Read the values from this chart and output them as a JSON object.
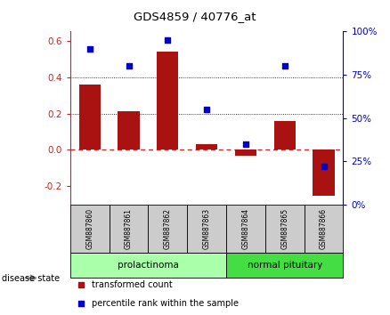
{
  "title": "GDS4859 / 40776_at",
  "samples": [
    "GSM887860",
    "GSM887861",
    "GSM887862",
    "GSM887863",
    "GSM887864",
    "GSM887865",
    "GSM887866"
  ],
  "transformed_count": [
    0.36,
    0.21,
    0.54,
    0.03,
    -0.03,
    0.16,
    -0.25
  ],
  "percentile_rank": [
    90,
    80,
    95,
    55,
    35,
    80,
    22
  ],
  "ylim_left": [
    -0.3,
    0.65
  ],
  "ylim_right": [
    0,
    100
  ],
  "yticks_left": [
    -0.2,
    0.0,
    0.2,
    0.4,
    0.6
  ],
  "yticks_right": [
    0,
    25,
    50,
    75,
    100
  ],
  "hlines_dotted": [
    0.2,
    0.4
  ],
  "bar_color": "#AA1111",
  "dot_color": "#0000CC",
  "zero_line_color": "#CC2222",
  "group_box_light": "#AAFFAA",
  "group_box_dark": "#44DD44",
  "sample_box_color": "#CCCCCC",
  "legend_items": [
    {
      "label": "transformed count",
      "color": "#AA1111"
    },
    {
      "label": "percentile rank within the sample",
      "color": "#0000CC"
    }
  ],
  "disease_state_label": "disease state",
  "background_color": "#FFFFFF"
}
